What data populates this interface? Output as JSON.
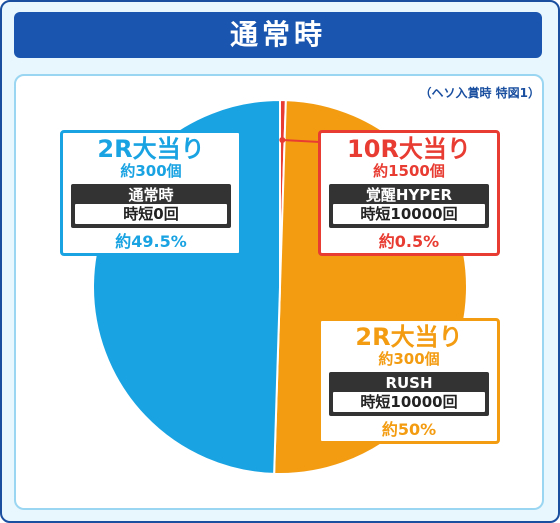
{
  "title": "通常時",
  "note": "（ヘソ入賞時 特図1）",
  "colors": {
    "blue": "#1aa3e2",
    "red": "#e83c32",
    "orange": "#f39c12",
    "frame": "#1a4fa0"
  },
  "chart_data": {
    "type": "pie",
    "start": "top",
    "direction": "clockwise",
    "slices": [
      {
        "id": "red",
        "value": 0.5,
        "color": "#e83c32",
        "head": "10R大当り",
        "sub": "約1500個",
        "mode": "覚醒HYPER",
        "jitan": "時短10000回",
        "pct": "約0.5%"
      },
      {
        "id": "orange",
        "value": 50,
        "color": "#f39c12",
        "head": "2R大当り",
        "sub": "約300個",
        "mode": "RUSH",
        "jitan": "時短10000回",
        "pct": "約50%"
      },
      {
        "id": "blue",
        "value": 49.5,
        "color": "#1aa3e2",
        "head": "2R大当り",
        "sub": "約300個",
        "mode": "通常時",
        "jitan": "時短0回",
        "pct": "約49.5%"
      }
    ]
  }
}
